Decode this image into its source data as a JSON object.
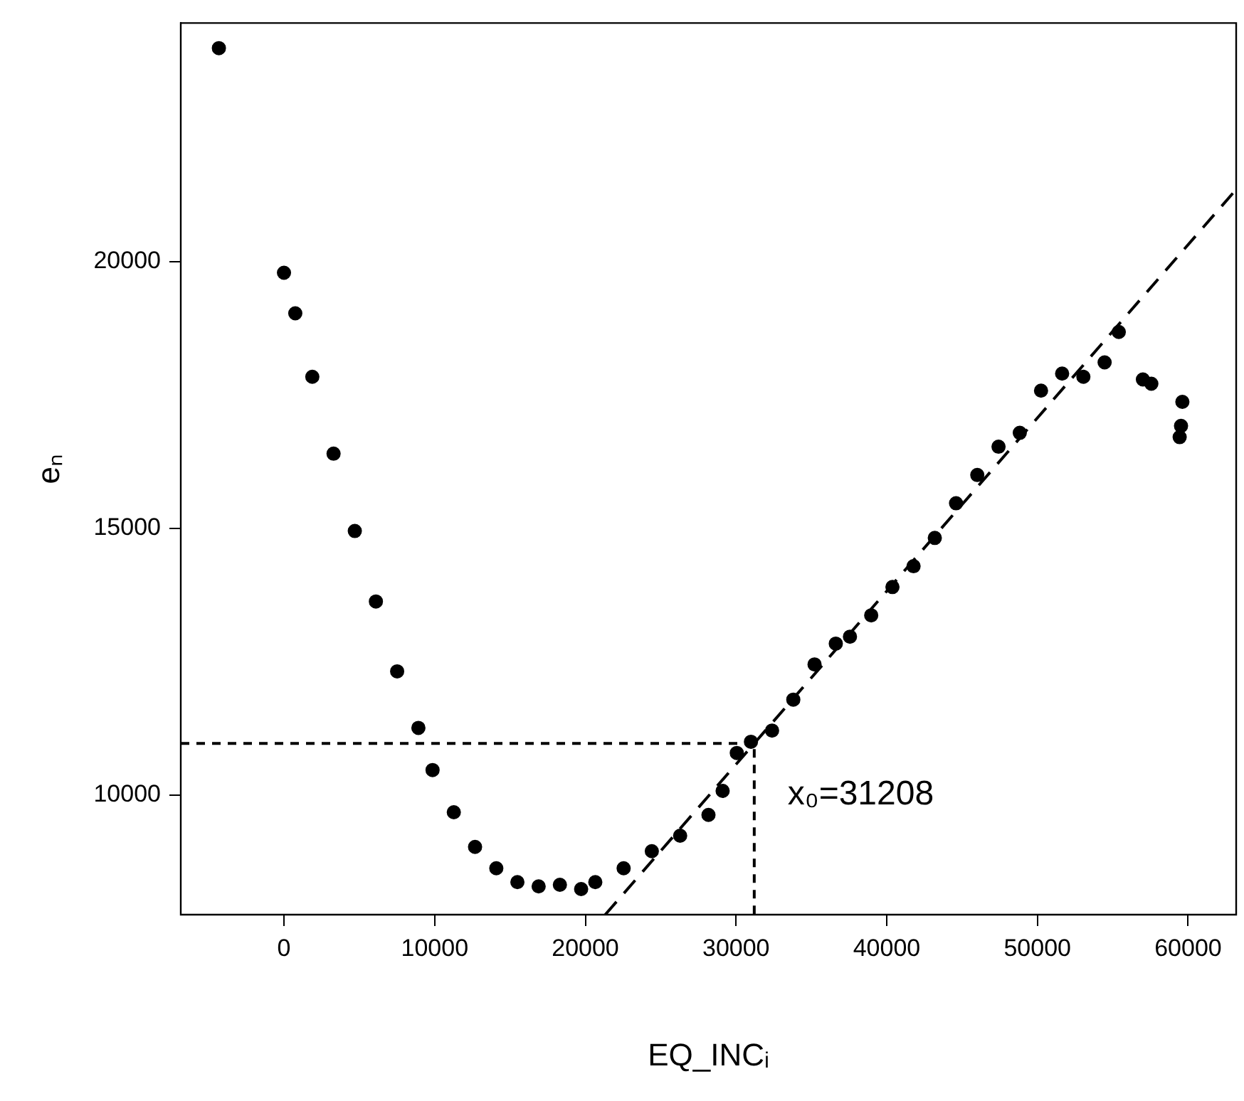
{
  "chart_data": {
    "type": "scatter",
    "xlabel": "EQ_INCᵢ",
    "ylabel": "eₙ",
    "xlim": [
      -6850,
      63190
    ],
    "ylim": [
      7760,
      24470
    ],
    "xticks": [
      0,
      10000,
      20000,
      30000,
      40000,
      50000,
      60000
    ],
    "yticks": [
      10000,
      15000,
      20000
    ],
    "grid": false,
    "legend": false,
    "series": [
      {
        "color": "#000000",
        "marker": "circle",
        "x": [
          -4320,
          0,
          750,
          1880,
          3290,
          4700,
          6100,
          7510,
          8920,
          9860,
          11270,
          12680,
          14090,
          15490,
          16900,
          18310,
          19720,
          20660,
          22540,
          24410,
          26290,
          28170,
          29110,
          30050,
          30990,
          32390,
          33800,
          35210,
          36620,
          37560,
          38970,
          40380,
          41780,
          43190,
          44600,
          46010,
          47420,
          48830,
          50240,
          51640,
          53050,
          54460,
          55400,
          57000,
          57560,
          59620,
          59530,
          59440
        ],
        "values": [
          24000,
          19790,
          19030,
          17840,
          16400,
          14950,
          13630,
          12320,
          11260,
          10470,
          9680,
          9030,
          8630,
          8370,
          8290,
          8320,
          8240,
          8370,
          8630,
          8950,
          9240,
          9630,
          10080,
          10790,
          11000,
          11210,
          11790,
          12450,
          12840,
          12970,
          13370,
          13900,
          14290,
          14820,
          15470,
          16000,
          16530,
          16790,
          17580,
          17900,
          17840,
          18110,
          18680,
          17790,
          17710,
          17370,
          16920,
          16710
        ]
      },
      {
        "type": "line",
        "color": "#000000",
        "line_style": "dashed",
        "x": [
          21320,
          63000
        ],
        "values": [
          7760,
          21290
        ]
      },
      {
        "type": "line",
        "color": "#000000",
        "line_style": "dotted",
        "x": [
          -6850,
          31208,
          31208
        ],
        "values": [
          10970,
          10970,
          7760
        ]
      }
    ],
    "annotations": [
      "x₀=31208"
    ]
  }
}
